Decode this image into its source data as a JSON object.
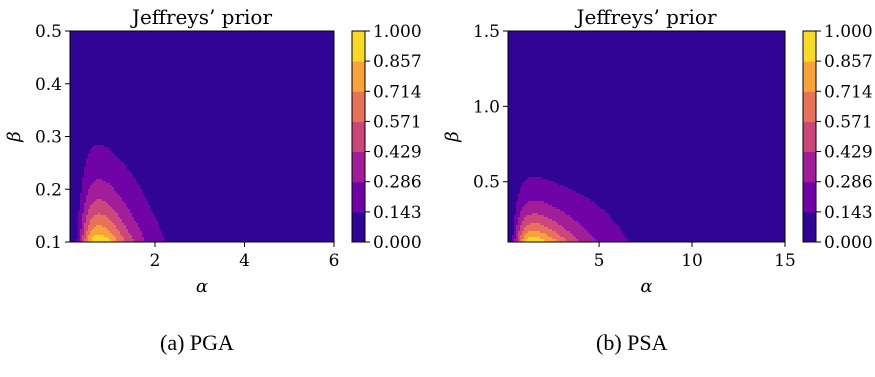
{
  "chart_data": [
    {
      "type": "heatmap",
      "subtype": "filled-contour",
      "title": "Jeffreys’ prior",
      "caption": "(a) PGA",
      "xlabel": "α",
      "ylabel": "β",
      "xlim": [
        0.1,
        6
      ],
      "ylim": [
        0.1,
        0.5
      ],
      "xticks": [
        2,
        4,
        6
      ],
      "yticks": [
        0.1,
        0.2,
        0.3,
        0.4,
        0.5
      ],
      "ytick_labels": [
        "0.1",
        "0.2",
        "0.3",
        "0.4",
        "0.5"
      ],
      "peak": {
        "alpha": 0.75,
        "beta": 0.1,
        "value": 1.0
      },
      "colorbar": {
        "colormap": "plasma",
        "levels": [
          0.0,
          0.143,
          0.286,
          0.429,
          0.571,
          0.714,
          0.857,
          1.0
        ],
        "tick_labels": [
          "0.000",
          "0.143",
          "0.286",
          "0.429",
          "0.571",
          "0.714",
          "0.857",
          "1.000"
        ]
      },
      "grid": false
    },
    {
      "type": "heatmap",
      "subtype": "filled-contour",
      "title": "Jeffreys’ prior",
      "caption": "(b) PSA",
      "xlabel": "α",
      "ylabel": "β",
      "xlim": [
        0.1,
        15
      ],
      "ylim": [
        0.1,
        1.5
      ],
      "xticks": [
        5,
        10,
        15
      ],
      "yticks": [
        0.5,
        1.0,
        1.5
      ],
      "ytick_labels": [
        "0.5",
        "1.0",
        "1.5"
      ],
      "peak": {
        "alpha": 1.5,
        "beta": 0.1,
        "value": 1.0
      },
      "colorbar": {
        "colormap": "plasma",
        "levels": [
          0.0,
          0.143,
          0.286,
          0.429,
          0.571,
          0.714,
          0.857,
          1.0
        ],
        "tick_labels": [
          "0.000",
          "0.143",
          "0.286",
          "0.429",
          "0.571",
          "0.714",
          "0.857",
          "1.000"
        ]
      },
      "grid": false
    }
  ]
}
